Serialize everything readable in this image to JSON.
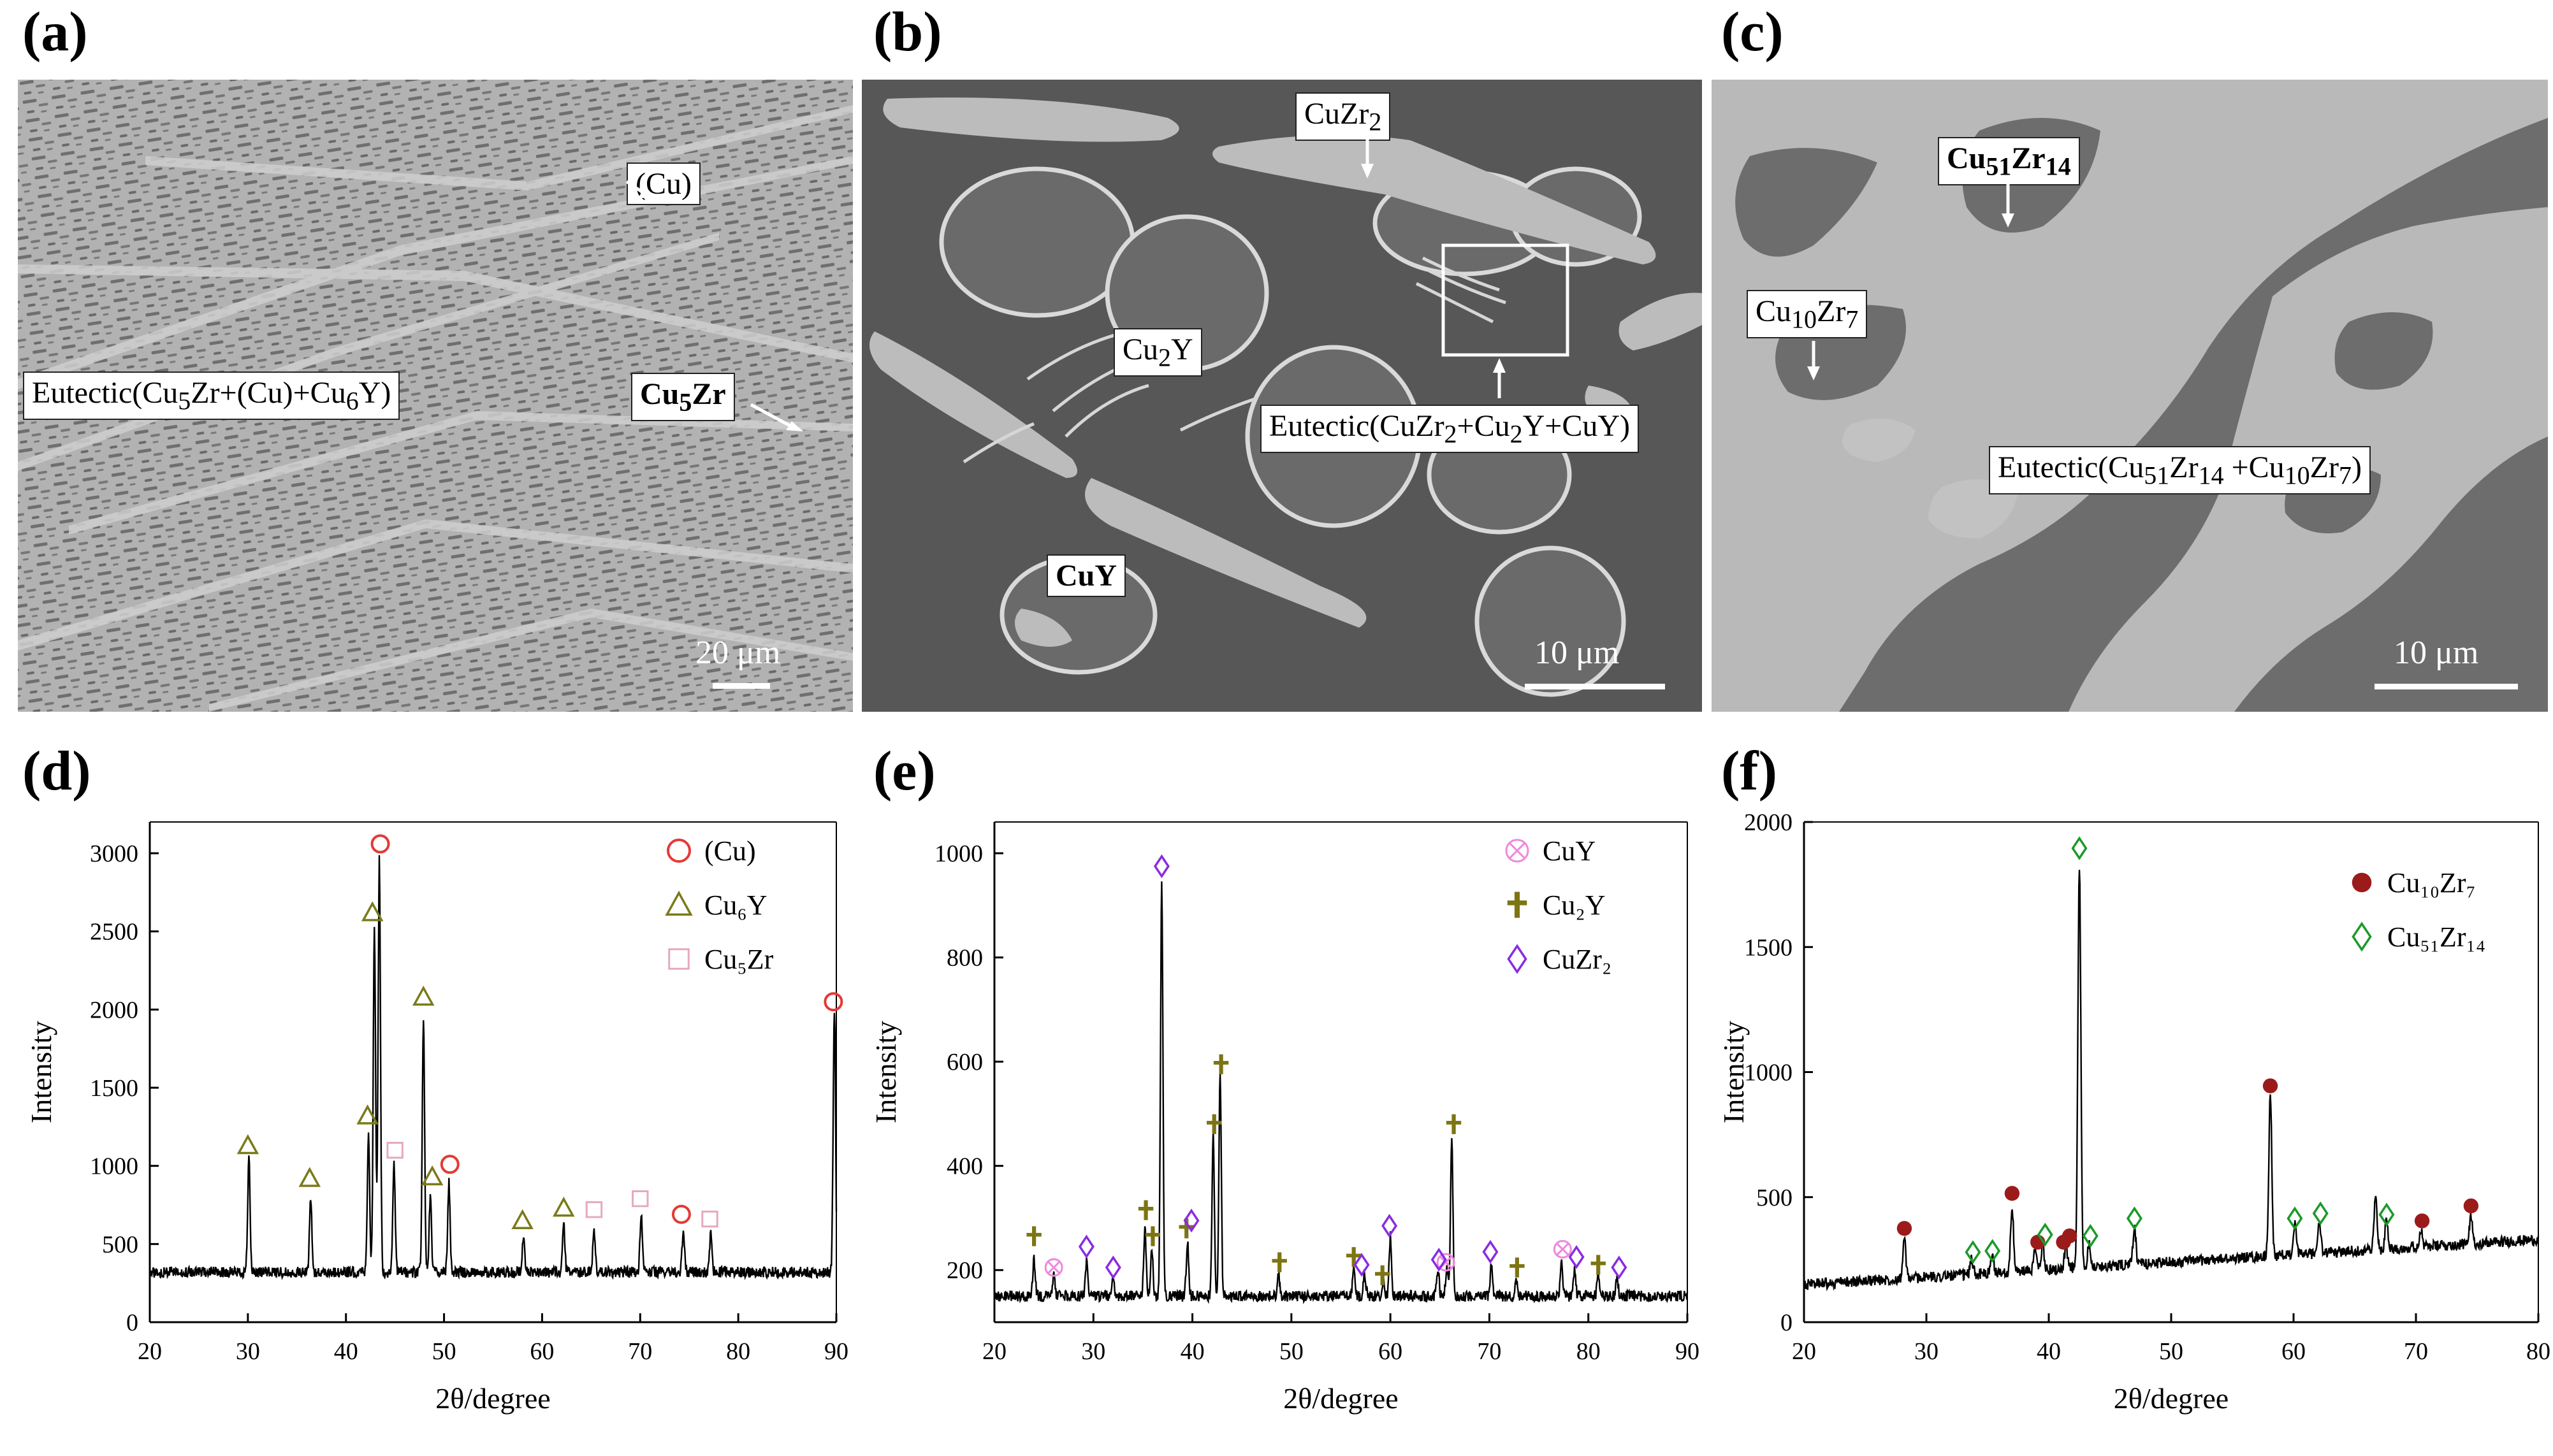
{
  "panels": {
    "a": {
      "letter": "(a)",
      "labels": {
        "cu": "(Cu)",
        "eutectic_a": "Eutectic(Cu",
        "eutectic_a_sub1": "5",
        "eutectic_a_mid": "Zr+(Cu)+Cu",
        "eutectic_a_sub2": "6",
        "eutectic_a_end": "Y)",
        "cu5zr_main": "Cu",
        "cu5zr_sub": "5",
        "cu5zr_end": "Zr"
      },
      "scale": "20 μm"
    },
    "b": {
      "letter": "(b)",
      "labels": {
        "cuzr2_main": "CuZr",
        "cuzr2_sub": "2",
        "cu2y_main": "Cu",
        "cu2y_sub": "2",
        "cu2y_end": "Y",
        "eut_1": "Eutectic(CuZr",
        "eut_s1": "2",
        "eut_2": "+Cu",
        "eut_s2": "2",
        "eut_3": "Y+CuY)",
        "cuy": "CuY"
      },
      "scale": "10 μm"
    },
    "c": {
      "letter": "(c)",
      "labels": {
        "c51_main": "Cu",
        "c51_sub1": "51",
        "c51_mid": "Zr",
        "c51_sub2": "14",
        "c10_main": "Cu",
        "c10_sub1": "10",
        "c10_mid": "Zr",
        "c10_sub2": "7",
        "eut_1": "Eutectic(Cu",
        "eut_s1": "51",
        "eut_2": "Zr",
        "eut_s2": "14",
        "eut_3": " +Cu",
        "eut_s3": "10",
        "eut_4": "Zr",
        "eut_s4": "7",
        "eut_5": ")"
      },
      "scale": "10 μm"
    },
    "d": {
      "letter": "(d)"
    },
    "e": {
      "letter": "(e)"
    },
    "f": {
      "letter": "(f)"
    }
  },
  "colors": {
    "cu_circle": "#e53935",
    "cu6y_triangle": "#7a7a1a",
    "cu5zr_square": "#e6a8c0",
    "cuy_otimes": "#ee88dd",
    "cu2y_cross": "#7d7413",
    "cuzr2_diamond": "#8a2be2",
    "cu10zr7_dot": "#9b1b1b",
    "cu51zr14_diamond": "#1a9a2a"
  },
  "chart_data": [
    {
      "panel": "d",
      "type": "line",
      "xlabel": "2θ/degree",
      "ylabel": "Intensity",
      "xlim": [
        20,
        90
      ],
      "ylim": [
        0,
        3200
      ],
      "xticks": [
        20,
        30,
        40,
        50,
        60,
        70,
        80,
        90
      ],
      "yticks": [
        0,
        500,
        1000,
        1500,
        2000,
        2500,
        3000
      ],
      "legend_position": "top-right",
      "baseline": 320,
      "peaks": [
        [
          30.1,
          1050
        ],
        [
          36.4,
          800
        ],
        [
          42.3,
          1200
        ],
        [
          42.9,
          2500
        ],
        [
          43.4,
          2960
        ],
        [
          44.9,
          1000
        ],
        [
          47.9,
          1950
        ],
        [
          48.6,
          800
        ],
        [
          50.5,
          900
        ],
        [
          58.1,
          560
        ],
        [
          62.2,
          620
        ],
        [
          65.3,
          600
        ],
        [
          70.1,
          700
        ],
        [
          74.4,
          600
        ],
        [
          77.2,
          560
        ],
        [
          89.8,
          2000
        ]
      ],
      "legend": [
        {
          "label": "(Cu)",
          "marker": "circle",
          "color": "#e53935"
        },
        {
          "label": "Cu₆Y",
          "marker": "triangle",
          "color": "#7a7a1a"
        },
        {
          "label": "Cu₅Zr",
          "marker": "square",
          "color": "#e6a8c0"
        }
      ],
      "markers": [
        {
          "series": 0,
          "points": [
            [
              43.5,
              3060
            ],
            [
              50.6,
              1010
            ],
            [
              74.2,
              690
            ],
            [
              89.7,
              2050
            ]
          ]
        },
        {
          "series": 1,
          "points": [
            [
              30.0,
              1130
            ],
            [
              36.3,
              920
            ],
            [
              42.2,
              1320
            ],
            [
              42.7,
              2620
            ],
            [
              47.9,
              2080
            ],
            [
              48.8,
              930
            ],
            [
              58.0,
              650
            ],
            [
              62.2,
              730
            ]
          ]
        },
        {
          "series": 2,
          "points": [
            [
              45.0,
              1100
            ],
            [
              65.3,
              720
            ],
            [
              70.0,
              790
            ],
            [
              77.1,
              660
            ]
          ]
        }
      ]
    },
    {
      "panel": "e",
      "type": "line",
      "xlabel": "2θ/degree",
      "ylabel": "Intensity",
      "xlim": [
        20,
        90
      ],
      "ylim": [
        100,
        1060
      ],
      "xticks": [
        20,
        30,
        40,
        50,
        60,
        70,
        80,
        90
      ],
      "yticks": [
        200,
        400,
        600,
        800,
        1000
      ],
      "legend_position": "top-right",
      "baseline": 150,
      "peaks": [
        [
          24.0,
          220
        ],
        [
          26.0,
          190
        ],
        [
          29.3,
          215
        ],
        [
          32.0,
          190
        ],
        [
          35.2,
          280
        ],
        [
          35.9,
          245
        ],
        [
          36.9,
          950
        ],
        [
          39.5,
          255
        ],
        [
          42.1,
          460
        ],
        [
          42.8,
          570
        ],
        [
          48.7,
          195
        ],
        [
          56.3,
          205
        ],
        [
          57.4,
          195
        ],
        [
          59.3,
          180
        ],
        [
          60.0,
          265
        ],
        [
          64.8,
          200
        ],
        [
          65.7,
          200
        ],
        [
          66.2,
          450
        ],
        [
          70.2,
          210
        ],
        [
          72.7,
          185
        ],
        [
          77.3,
          215
        ],
        [
          78.6,
          200
        ],
        [
          81.0,
          190
        ],
        [
          82.9,
          185
        ]
      ],
      "legend": [
        {
          "label": "CuY",
          "marker": "otimes",
          "color": "#ee88dd"
        },
        {
          "label": "Cu₂Y",
          "marker": "cross",
          "color": "#7d7413"
        },
        {
          "label": "CuZr₂",
          "marker": "diamond",
          "color": "#8a2be2"
        }
      ],
      "markers": [
        {
          "series": 0,
          "points": [
            [
              26.0,
              205
            ],
            [
              65.6,
              215
            ],
            [
              77.4,
              240
            ]
          ]
        },
        {
          "series": 1,
          "points": [
            [
              24.0,
              265
            ],
            [
              35.3,
              315
            ],
            [
              36.0,
              265
            ],
            [
              39.4,
              280
            ],
            [
              42.2,
              480
            ],
            [
              42.9,
              595
            ],
            [
              48.8,
              215
            ],
            [
              56.3,
              225
            ],
            [
              59.2,
              190
            ],
            [
              66.4,
              480
            ],
            [
              72.8,
              205
            ],
            [
              81.0,
              210
            ]
          ]
        },
        {
          "series": 2,
          "points": [
            [
              29.3,
              245
            ],
            [
              32.0,
              205
            ],
            [
              36.9,
              975
            ],
            [
              39.9,
              295
            ],
            [
              57.1,
              210
            ],
            [
              59.9,
              285
            ],
            [
              64.9,
              220
            ],
            [
              70.1,
              235
            ],
            [
              78.8,
              225
            ],
            [
              83.1,
              205
            ]
          ]
        }
      ]
    },
    {
      "panel": "f",
      "type": "line",
      "xlabel": "2θ/degree",
      "ylabel": "Intensity",
      "xlim": [
        20,
        80
      ],
      "ylim": [
        0,
        2000
      ],
      "xticks": [
        20,
        30,
        40,
        50,
        60,
        70,
        80
      ],
      "yticks": [
        0,
        500,
        1000,
        1500,
        2000
      ],
      "legend_position": "top-right",
      "baseline": 150,
      "baseline_end": 330,
      "peaks": [
        [
          28.2,
          330
        ],
        [
          33.7,
          250
        ],
        [
          35.4,
          260
        ],
        [
          37.0,
          460
        ],
        [
          38.9,
          290
        ],
        [
          39.5,
          310
        ],
        [
          41.4,
          300
        ],
        [
          42.5,
          1830
        ],
        [
          43.3,
          320
        ],
        [
          47.0,
          380
        ],
        [
          58.1,
          920
        ],
        [
          60.1,
          390
        ],
        [
          62.1,
          400
        ],
        [
          66.7,
          500
        ],
        [
          67.6,
          410
        ],
        [
          70.4,
          370
        ],
        [
          74.5,
          420
        ]
      ],
      "legend": [
        {
          "label": "Cu₁₀Zr₇",
          "marker": "dot",
          "color": "#9b1b1b"
        },
        {
          "label": "Cu₅₁Zr₁₄",
          "marker": "diamond",
          "color": "#1a9a2a"
        }
      ],
      "markers": [
        {
          "series": 0,
          "points": [
            [
              28.2,
              375
            ],
            [
              37.0,
              515
            ],
            [
              39.1,
              320
            ],
            [
              41.2,
              320
            ],
            [
              41.7,
              345
            ],
            [
              58.1,
              945
            ],
            [
              70.5,
              405
            ],
            [
              74.5,
              465
            ]
          ]
        },
        {
          "series": 1,
          "points": [
            [
              33.8,
              280
            ],
            [
              35.4,
              285
            ],
            [
              39.7,
              350
            ],
            [
              42.5,
              1895
            ],
            [
              43.4,
              345
            ],
            [
              47.0,
              415
            ],
            [
              60.1,
              415
            ],
            [
              62.2,
              435
            ],
            [
              67.6,
              430
            ]
          ]
        }
      ]
    }
  ]
}
